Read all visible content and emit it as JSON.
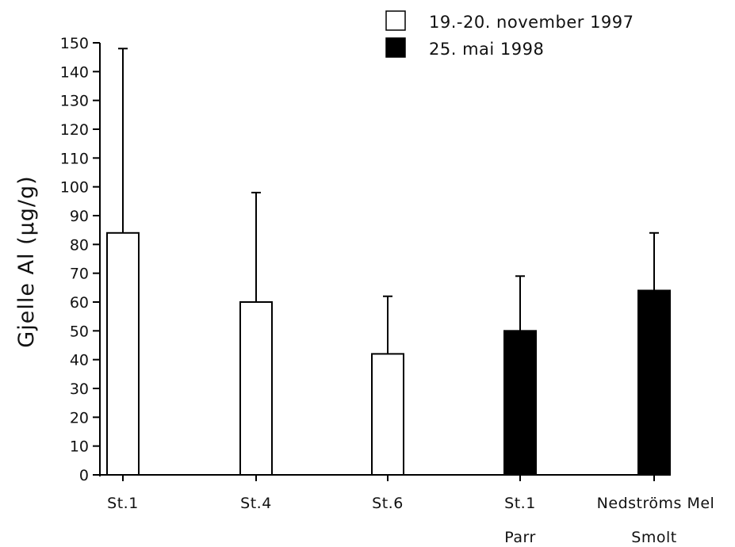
{
  "chart_data": {
    "type": "bar",
    "ylabel": "Gjelle Al (µg/g)",
    "xlabel": "",
    "ylim": [
      0,
      150
    ],
    "yticks": [
      0,
      10,
      20,
      30,
      40,
      50,
      60,
      70,
      80,
      90,
      100,
      110,
      120,
      130,
      140,
      150
    ],
    "categories": [
      "St.1",
      "St.4",
      "St.6",
      "St.1",
      "Nedströms Mel"
    ],
    "sublabels": [
      "",
      "",
      "",
      "Parr",
      "Smolt"
    ],
    "bars": [
      {
        "category": "St.1",
        "value": 84,
        "error": 64,
        "series": "19.-20. november 1997"
      },
      {
        "category": "St.4",
        "value": 60,
        "error": 38,
        "series": "19.-20. november 1997"
      },
      {
        "category": "St.6",
        "value": 42,
        "error": 20,
        "series": "19.-20. november 1997"
      },
      {
        "category": "St.1",
        "value": 50,
        "error": 19,
        "series": "25. mai 1998"
      },
      {
        "category": "Nedströms Mel",
        "value": 64,
        "error": 20,
        "series": "25. mai 1998"
      }
    ],
    "series": [
      {
        "name": "19.-20. november 1997",
        "fill": "#ffffff"
      },
      {
        "name": "25. mai 1998",
        "fill": "#000000"
      }
    ],
    "legend_position": "top-right",
    "grid": false
  }
}
